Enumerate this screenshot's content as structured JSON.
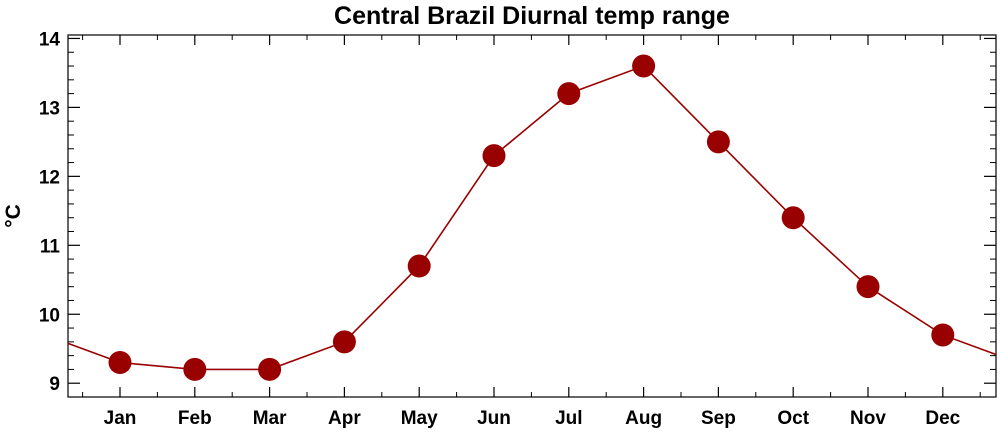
{
  "chart_data": {
    "type": "line",
    "title": "Central Brazil Diurnal temp range",
    "xlabel": "",
    "ylabel": "°C",
    "categories": [
      "Jan",
      "Feb",
      "Mar",
      "Apr",
      "May",
      "Jun",
      "Jul",
      "Aug",
      "Sep",
      "Oct",
      "Nov",
      "Dec"
    ],
    "series": [
      {
        "values": [
          9.3,
          9.2,
          9.2,
          9.6,
          10.7,
          12.3,
          13.2,
          13.6,
          12.5,
          11.4,
          10.4,
          9.7
        ]
      }
    ],
    "ylim": [
      8.8,
      14.05
    ],
    "yticks": [
      9,
      10,
      11,
      12,
      13,
      14
    ],
    "cyclic": true,
    "grid": false,
    "colors": {
      "series": "#990000",
      "marker": "#990000",
      "axes": "#000000"
    }
  }
}
